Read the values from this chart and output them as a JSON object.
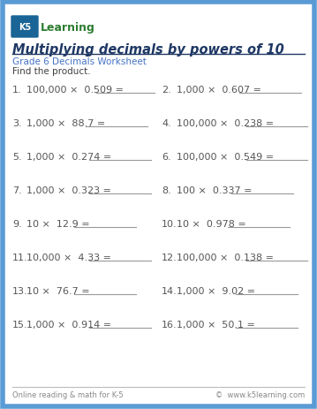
{
  "title": "Multiplying decimals by powers of 10",
  "subtitle": "Grade 6 Decimals Worksheet",
  "instruction": "Find the product.",
  "border_color": "#5b9bd5",
  "title_color": "#1f3864",
  "subtitle_color": "#4472c4",
  "instruction_color": "#404040",
  "problem_color": "#555555",
  "footer_left": "Online reading & math for K-5",
  "footer_right": "©  www.k5learning.com",
  "footer_color": "#888888",
  "bg_color": "#ffffff",
  "answer_line_color": "#999999",
  "title_underline_color": "#1f3864",
  "logo_box_color": "#d0e8f0",
  "logo_k5_color": "#1a6496",
  "logo_text_color": "#2e7d32",
  "problems_left": [
    {
      "num": "1.",
      "expr": "100,000 ×  0.509 ="
    },
    {
      "num": "3.",
      "expr": "1,000 ×  88.7 ="
    },
    {
      "num": "5.",
      "expr": "1,000 ×  0.274 ="
    },
    {
      "num": "7.",
      "expr": "1,000 ×  0.323 ="
    },
    {
      "num": "9.",
      "expr": "10 ×  12.9 ="
    },
    {
      "num": "11.",
      "expr": "10,000 ×  4.33 ="
    },
    {
      "num": "13.",
      "expr": "10 ×  76.7 ="
    },
    {
      "num": "15.",
      "expr": "1,000 ×  0.914 ="
    }
  ],
  "problems_right": [
    {
      "num": "2.",
      "expr": "1,000 ×  0.607 ="
    },
    {
      "num": "4.",
      "expr": "100,000 ×  0.238 ="
    },
    {
      "num": "6.",
      "expr": "100,000 ×  0.549 ="
    },
    {
      "num": "8.",
      "expr": "100 ×  0.337 ="
    },
    {
      "num": "10.",
      "expr": "10 ×  0.978 ="
    },
    {
      "num": "12.",
      "expr": "100,000 ×  0.138 ="
    },
    {
      "num": "14.",
      "expr": "1,000 ×  9.02 ="
    },
    {
      "num": "16.",
      "expr": "1,000 ×  50.1 ="
    }
  ]
}
